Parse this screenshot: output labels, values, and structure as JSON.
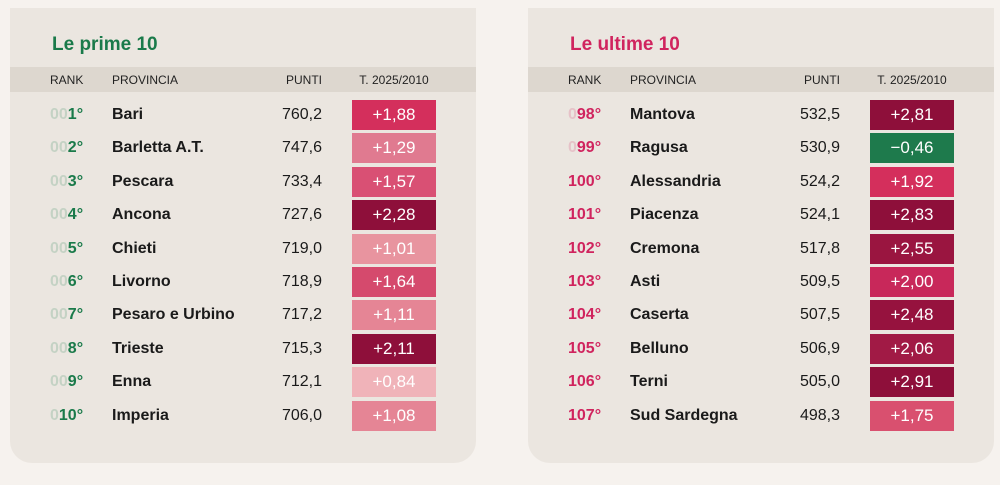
{
  "panels": [
    {
      "title": "Le prime 10",
      "header": [
        "RANK",
        "PROVINCIA",
        "PUNTI",
        "T. 2025/2010"
      ],
      "rows": [
        [
          "001°",
          "Bari",
          "760,2",
          "+1,88"
        ],
        [
          "002°",
          "Barletta A.T.",
          "747,6",
          "+1,29"
        ],
        [
          "003°",
          "Pescara",
          "733,4",
          "+1,57"
        ],
        [
          "004°",
          "Ancona",
          "727,6",
          "+2,28"
        ],
        [
          "005°",
          "Chieti",
          "719,0",
          "+1,01"
        ],
        [
          "006°",
          "Livorno",
          "718,9",
          "+1,64"
        ],
        [
          "007°",
          "Pesaro e Urbino",
          "717,2",
          "+1,11"
        ],
        [
          "008°",
          "Trieste",
          "715,3",
          "+2,11"
        ],
        [
          "009°",
          "Enna",
          "712,1",
          "+0,84"
        ],
        [
          "010°",
          "Imperia",
          "706,0",
          "+1,08"
        ]
      ],
      "trend_colors": [
        "#d42f5c",
        "#e07a90",
        "#d95074",
        "#8e0f3a",
        "#e8949f",
        "#d54a6d",
        "#e58595",
        "#8e0f3a",
        "#f0b3b9",
        "#e58595"
      ]
    },
    {
      "title": "Le ultime 10",
      "header": [
        "RANK",
        "PROVINCIA",
        "PUNTI",
        "T. 2025/2010"
      ],
      "rows": [
        [
          "098°",
          "Mantova",
          "532,5",
          "+2,81"
        ],
        [
          "099°",
          "Ragusa",
          "530,9",
          "−0,46"
        ],
        [
          "100°",
          "Alessandria",
          "524,2",
          "+1,92"
        ],
        [
          "101°",
          "Piacenza",
          "524,1",
          "+2,83"
        ],
        [
          "102°",
          "Cremona",
          "517,8",
          "+2,55"
        ],
        [
          "103°",
          "Asti",
          "509,5",
          "+2,00"
        ],
        [
          "104°",
          "Caserta",
          "507,5",
          "+2,48"
        ],
        [
          "105°",
          "Belluno",
          "506,9",
          "+2,06"
        ],
        [
          "106°",
          "Terni",
          "505,0",
          "+2,91"
        ],
        [
          "107°",
          "Sud Sardegna",
          "498,3",
          "+1,75"
        ]
      ],
      "trend_colors": [
        "#8e0f3a",
        "#1e7a4c",
        "#d42f5c",
        "#8e0f3a",
        "#9a1540",
        "#c8285a",
        "#96123e",
        "#a11a45",
        "#8e0f3a",
        "#d9506f"
      ]
    }
  ]
}
